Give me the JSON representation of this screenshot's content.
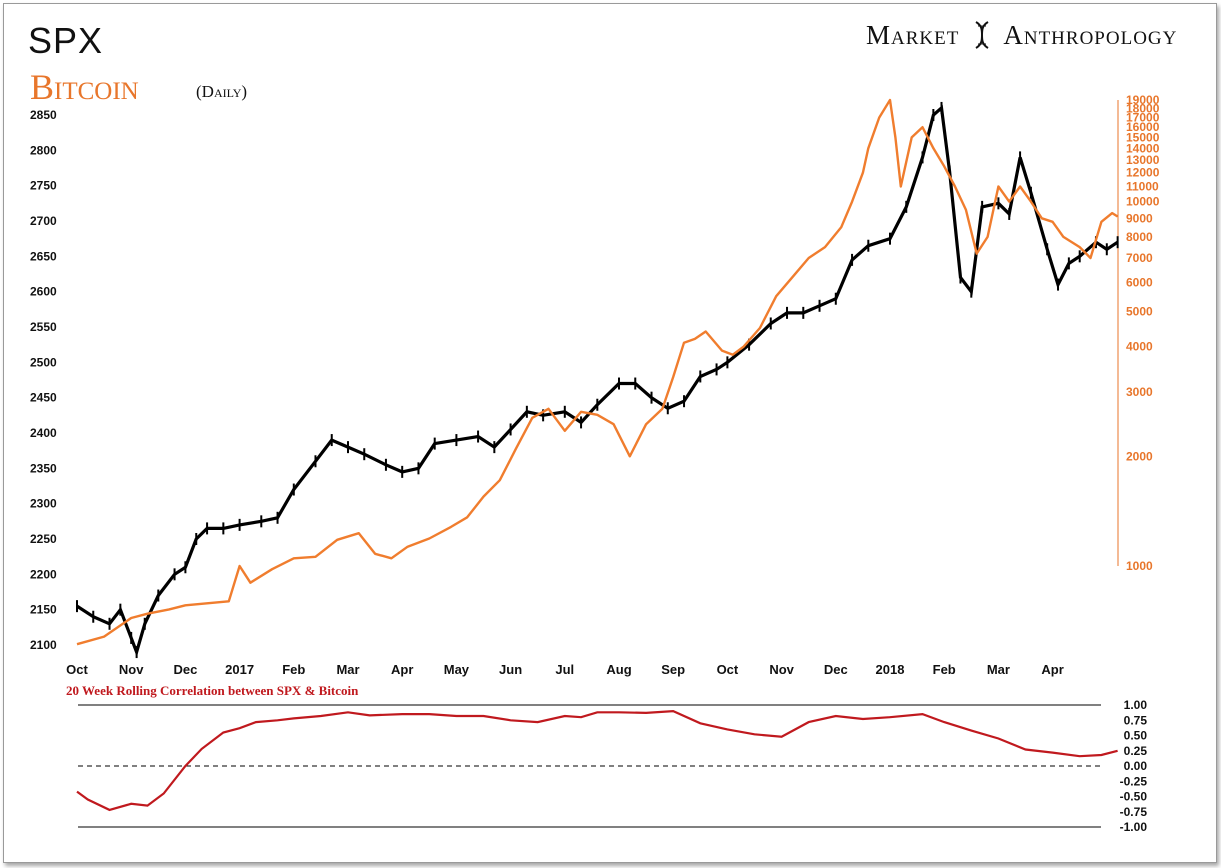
{
  "header": {
    "title": "SPX",
    "subtitle": "Bitcoin",
    "period": "(Daily)",
    "brand_left": "Market",
    "brand_right": "Anthropology"
  },
  "colors": {
    "spx": "#000000",
    "bitcoin": "#f07d2e",
    "correlation": "#c0191e",
    "right_axis": "#e8762b"
  },
  "chart_data": [
    {
      "type": "line",
      "title": "SPX / Bitcoin (Daily)",
      "x_labels": [
        "Oct",
        "Nov",
        "Dec",
        "2017",
        "Feb",
        "Mar",
        "Apr",
        "May",
        "Jun",
        "Jul",
        "Aug",
        "Sep",
        "Oct",
        "Nov",
        "Dec",
        "2018",
        "Feb",
        "Mar",
        "Apr"
      ],
      "left_axis": {
        "ticks": [
          2100,
          2150,
          2200,
          2250,
          2300,
          2350,
          2400,
          2450,
          2500,
          2550,
          2600,
          2650,
          2700,
          2750,
          2800,
          2850
        ],
        "range": [
          2080,
          2875
        ]
      },
      "right_axis": {
        "scale": "log",
        "ticks": [
          1000,
          2000,
          3000,
          4000,
          5000,
          6000,
          7000,
          8000,
          9000,
          10000,
          11000,
          12000,
          13000,
          14000,
          15000,
          16000,
          17000,
          18000,
          19000
        ],
        "range": [
          500,
          19500
        ]
      },
      "series": [
        {
          "name": "SPX",
          "axis": "left",
          "values": [
            [
              0,
              2155
            ],
            [
              0.3,
              2140
            ],
            [
              0.6,
              2130
            ],
            [
              0.8,
              2150
            ],
            [
              1.0,
              2110
            ],
            [
              1.1,
              2090
            ],
            [
              1.25,
              2130
            ],
            [
              1.5,
              2170
            ],
            [
              1.8,
              2200
            ],
            [
              2.0,
              2210
            ],
            [
              2.2,
              2250
            ],
            [
              2.4,
              2265
            ],
            [
              2.7,
              2265
            ],
            [
              3.0,
              2270
            ],
            [
              3.4,
              2275
            ],
            [
              3.7,
              2280
            ],
            [
              4.0,
              2320
            ],
            [
              4.4,
              2360
            ],
            [
              4.7,
              2390
            ],
            [
              5.0,
              2380
            ],
            [
              5.3,
              2370
            ],
            [
              5.7,
              2355
            ],
            [
              6.0,
              2345
            ],
            [
              6.3,
              2350
            ],
            [
              6.6,
              2385
            ],
            [
              7.0,
              2390
            ],
            [
              7.4,
              2395
            ],
            [
              7.7,
              2380
            ],
            [
              8.0,
              2405
            ],
            [
              8.3,
              2430
            ],
            [
              8.6,
              2425
            ],
            [
              9.0,
              2430
            ],
            [
              9.3,
              2415
            ],
            [
              9.6,
              2440
            ],
            [
              10.0,
              2470
            ],
            [
              10.3,
              2470
            ],
            [
              10.6,
              2450
            ],
            [
              10.9,
              2435
            ],
            [
              11.2,
              2445
            ],
            [
              11.5,
              2480
            ],
            [
              11.8,
              2490
            ],
            [
              12.0,
              2500
            ],
            [
              12.4,
              2525
            ],
            [
              12.8,
              2555
            ],
            [
              13.1,
              2570
            ],
            [
              13.4,
              2570
            ],
            [
              13.7,
              2580
            ],
            [
              14.0,
              2590
            ],
            [
              14.3,
              2645
            ],
            [
              14.6,
              2665
            ],
            [
              15.0,
              2675
            ],
            [
              15.3,
              2720
            ],
            [
              15.6,
              2790
            ],
            [
              15.8,
              2850
            ],
            [
              15.95,
              2860
            ],
            [
              16.1,
              2770
            ],
            [
              16.3,
              2620
            ],
            [
              16.5,
              2600
            ],
            [
              16.7,
              2720
            ],
            [
              17.0,
              2725
            ],
            [
              17.2,
              2710
            ],
            [
              17.4,
              2790
            ],
            [
              17.6,
              2740
            ],
            [
              17.9,
              2660
            ],
            [
              18.1,
              2610
            ],
            [
              18.3,
              2640
            ],
            [
              18.5,
              2650
            ],
            [
              18.8,
              2670
            ],
            [
              19.0,
              2660
            ],
            [
              19.2,
              2670
            ]
          ]
        },
        {
          "name": "Bitcoin",
          "axis": "right",
          "values": [
            [
              0,
              610
            ],
            [
              0.5,
              640
            ],
            [
              1.0,
              720
            ],
            [
              1.3,
              740
            ],
            [
              1.7,
              760
            ],
            [
              2.0,
              780
            ],
            [
              2.4,
              790
            ],
            [
              2.8,
              800
            ],
            [
              3.0,
              1000
            ],
            [
              3.2,
              900
            ],
            [
              3.6,
              980
            ],
            [
              4.0,
              1050
            ],
            [
              4.4,
              1060
            ],
            [
              4.8,
              1180
            ],
            [
              5.2,
              1230
            ],
            [
              5.5,
              1080
            ],
            [
              5.8,
              1050
            ],
            [
              6.1,
              1130
            ],
            [
              6.5,
              1190
            ],
            [
              6.9,
              1280
            ],
            [
              7.2,
              1360
            ],
            [
              7.5,
              1550
            ],
            [
              7.8,
              1720
            ],
            [
              8.1,
              2100
            ],
            [
              8.4,
              2550
            ],
            [
              8.7,
              2700
            ],
            [
              9.0,
              2350
            ],
            [
              9.3,
              2650
            ],
            [
              9.6,
              2600
            ],
            [
              9.9,
              2450
            ],
            [
              10.2,
              2000
            ],
            [
              10.5,
              2450
            ],
            [
              10.8,
              2700
            ],
            [
              11.0,
              3300
            ],
            [
              11.2,
              4100
            ],
            [
              11.4,
              4200
            ],
            [
              11.6,
              4400
            ],
            [
              11.9,
              3900
            ],
            [
              12.1,
              3800
            ],
            [
              12.3,
              4000
            ],
            [
              12.6,
              4500
            ],
            [
              12.9,
              5500
            ],
            [
              13.2,
              6200
            ],
            [
              13.5,
              7000
            ],
            [
              13.8,
              7500
            ],
            [
              14.1,
              8500
            ],
            [
              14.3,
              10000
            ],
            [
              14.5,
              12000
            ],
            [
              14.6,
              14000
            ],
            [
              14.8,
              17000
            ],
            [
              15.0,
              19000
            ],
            [
              15.1,
              15000
            ],
            [
              15.2,
              11000
            ],
            [
              15.4,
              15000
            ],
            [
              15.6,
              16000
            ],
            [
              15.8,
              14000
            ],
            [
              16.0,
              12500
            ],
            [
              16.2,
              11000
            ],
            [
              16.4,
              9500
            ],
            [
              16.6,
              7200
            ],
            [
              16.8,
              8000
            ],
            [
              17.0,
              11000
            ],
            [
              17.2,
              10000
            ],
            [
              17.4,
              11000
            ],
            [
              17.6,
              10000
            ],
            [
              17.8,
              9000
            ],
            [
              18.0,
              8800
            ],
            [
              18.2,
              8000
            ],
            [
              18.5,
              7500
            ],
            [
              18.7,
              7000
            ],
            [
              18.9,
              8800
            ],
            [
              19.1,
              9300
            ],
            [
              19.2,
              9100
            ]
          ]
        }
      ]
    },
    {
      "type": "line",
      "title": "20 Week Rolling Correlation between SPX & Bitcoin",
      "y_ticks": [
        "1.00",
        "0.75",
        "0.50",
        "0.25",
        "0.00",
        "-0.25",
        "-0.50",
        "-0.75",
        "-1.00"
      ],
      "ylim": [
        -1,
        1
      ],
      "series": [
        {
          "name": "20 Week Rolling Correlation between SPX & Bitcoin",
          "values": [
            [
              0,
              -0.42
            ],
            [
              0.2,
              -0.55
            ],
            [
              0.6,
              -0.72
            ],
            [
              1.0,
              -0.62
            ],
            [
              1.3,
              -0.65
            ],
            [
              1.6,
              -0.45
            ],
            [
              2.0,
              0.0
            ],
            [
              2.3,
              0.28
            ],
            [
              2.7,
              0.55
            ],
            [
              3.0,
              0.62
            ],
            [
              3.3,
              0.72
            ],
            [
              3.7,
              0.75
            ],
            [
              4.0,
              0.78
            ],
            [
              4.5,
              0.82
            ],
            [
              5.0,
              0.88
            ],
            [
              5.4,
              0.83
            ],
            [
              6.0,
              0.85
            ],
            [
              6.5,
              0.85
            ],
            [
              7.0,
              0.82
            ],
            [
              7.5,
              0.82
            ],
            [
              8.0,
              0.75
            ],
            [
              8.5,
              0.72
            ],
            [
              9.0,
              0.82
            ],
            [
              9.3,
              0.8
            ],
            [
              9.6,
              0.88
            ],
            [
              10.0,
              0.88
            ],
            [
              10.5,
              0.87
            ],
            [
              11.0,
              0.9
            ],
            [
              11.5,
              0.7
            ],
            [
              12.0,
              0.6
            ],
            [
              12.5,
              0.52
            ],
            [
              13.0,
              0.48
            ],
            [
              13.5,
              0.72
            ],
            [
              14.0,
              0.82
            ],
            [
              14.5,
              0.77
            ],
            [
              15.0,
              0.8
            ],
            [
              15.6,
              0.85
            ],
            [
              16.0,
              0.72
            ],
            [
              16.5,
              0.58
            ],
            [
              17.0,
              0.45
            ],
            [
              17.5,
              0.27
            ],
            [
              18.0,
              0.22
            ],
            [
              18.5,
              0.16
            ],
            [
              18.9,
              0.18
            ],
            [
              19.2,
              0.25
            ]
          ]
        }
      ]
    }
  ]
}
